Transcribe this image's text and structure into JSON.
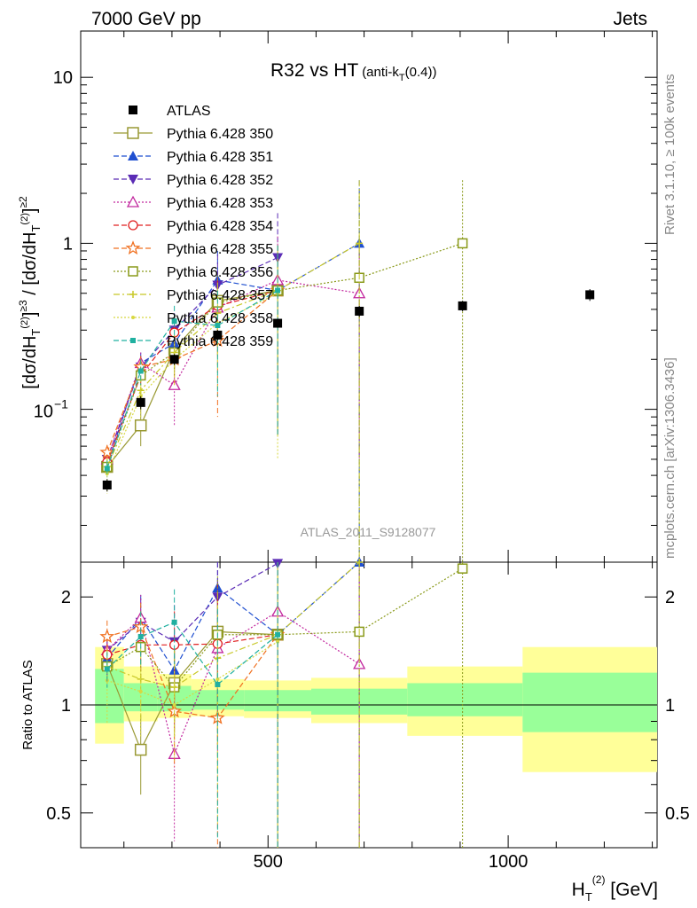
{
  "header": {
    "left": "7000 GeV pp",
    "right": "Jets"
  },
  "side_labels": {
    "rivet": "Rivet 3.1.10, ≥ 100k events",
    "mcplots": "mcplots.cern.ch [arXiv:1306.3436]"
  },
  "chart_data": [
    {
      "type": "scatter",
      "title": "R32 vs HT",
      "title_sub": "(anti-k",
      "title_sub_t": "T",
      "title_sub_end": "(0.4))",
      "analysis_label": "ATLAS_2011_S9128077",
      "ylabel": "[dσ/dH_T^(2)]^≥3 / [dσ/dH_T^(2)]^≥2",
      "yscale": "log",
      "ylim": [
        0.012,
        19
      ],
      "xlim": [
        110,
        1310
      ],
      "ytick_labels": [
        "10",
        "1",
        "10"
      ],
      "ytick_exp": "−1",
      "legend_position": "top-left",
      "x": [
        165,
        235,
        305,
        395,
        520,
        690,
        905,
        1170
      ],
      "data": {
        "name": "ATLAS",
        "values": [
          0.035,
          0.11,
          0.2,
          0.28,
          0.33,
          0.39,
          0.42,
          0.49
        ],
        "err_low": [
          0.003,
          0.01,
          0.015,
          0.02,
          0.02,
          0.03,
          0.03,
          0.04
        ],
        "err_high": [
          0.003,
          0.01,
          0.015,
          0.02,
          0.02,
          0.03,
          0.03,
          0.04
        ]
      },
      "series": [
        {
          "name": "Pythia 6.428 350",
          "color": "#999933",
          "line": "solid",
          "marker": "square-open",
          "values": [
            0.045,
            0.08,
            0.23,
            0.45,
            0.52
          ],
          "err": [
            0.004,
            0.02,
            0.06,
            0.15,
            0.45
          ]
        },
        {
          "name": "Pythia 6.428 351",
          "color": "#1f4fd0",
          "line": "dashed",
          "marker": "triangle-up",
          "values": [
            0.046,
            0.19,
            0.25,
            0.6,
            0.52,
            1.0
          ],
          "err": [
            0.006,
            0.03,
            0.07,
            0.3,
            0.45,
            1.4
          ]
        },
        {
          "name": "Pythia 6.428 352",
          "color": "#5a2bb5",
          "line": "dashed",
          "marker": "triangle-down",
          "values": [
            0.05,
            0.18,
            0.3,
            0.56,
            0.82
          ],
          "err": [
            0.006,
            0.03,
            0.08,
            0.3,
            0.7
          ]
        },
        {
          "name": "Pythia 6.428 353",
          "color": "#c2279e",
          "line": "dotted",
          "marker": "triangle-open",
          "values": [
            0.05,
            0.19,
            0.14,
            0.41,
            0.6,
            0.5
          ],
          "err": [
            0.005,
            0.03,
            0.06,
            0.2,
            0.5,
            0.45
          ]
        },
        {
          "name": "Pythia 6.428 354",
          "color": "#e02020",
          "line": "dashed",
          "marker": "circle-open",
          "values": [
            0.048,
            0.16,
            0.29,
            0.42,
            0.52
          ],
          "err": [
            0.006,
            0.03,
            0.07,
            0.2,
            0.45
          ]
        },
        {
          "name": "Pythia 6.428 355",
          "color": "#f07020",
          "line": "dashed",
          "marker": "star-open",
          "values": [
            0.055,
            0.18,
            0.2,
            0.26,
            0.52
          ],
          "err": [
            0.006,
            0.03,
            0.06,
            0.17,
            0.45
          ]
        },
        {
          "name": "Pythia 6.428 356",
          "color": "#8a9a1a",
          "line": "dotted",
          "marker": "square-open-small",
          "values": [
            0.045,
            0.16,
            0.22,
            0.44,
            0.52,
            0.62,
            1.0
          ],
          "err": [
            0.005,
            0.03,
            0.06,
            0.2,
            0.45,
            1.5,
            1.4
          ]
        },
        {
          "name": "Pythia 6.428 357",
          "color": "#c8c828",
          "line": "dashdot",
          "marker": "plus-small",
          "values": [
            0.045,
            0.13,
            0.22,
            0.38,
            0.52,
            1.0
          ],
          "err": [
            0.005,
            0.03,
            0.06,
            0.2,
            0.45,
            1.4
          ]
        },
        {
          "name": "Pythia 6.428 358",
          "color": "#d8d840",
          "line": "dotted",
          "marker": "dot-small",
          "values": [
            0.041,
            0.12,
            0.2,
            0.33,
            0.5
          ],
          "err": [
            0.01,
            0.03,
            0.06,
            0.2,
            0.45
          ]
        },
        {
          "name": "Pythia 6.428 359",
          "color": "#20b0a0",
          "line": "dashed",
          "marker": "square-filled-small",
          "values": [
            0.044,
            0.17,
            0.34,
            0.32,
            0.52
          ],
          "err": [
            0.005,
            0.03,
            0.08,
            0.2,
            0.45
          ]
        }
      ]
    },
    {
      "type": "scatter",
      "ylabel": "Ratio to ATLAS",
      "yscale": "log",
      "ylim": [
        0.4,
        2.5
      ],
      "xlim": [
        110,
        1310
      ],
      "ytick_labels": [
        "2",
        "1",
        "0.5"
      ],
      "xtick_labels": [
        "500",
        "1000"
      ],
      "xlabel": "H_T^(2) [GeV]",
      "band_edges": [
        140,
        200,
        270,
        340,
        450,
        590,
        790,
        1030,
        1310
      ],
      "band_yellow": [
        [
          0.78,
          1.45
        ],
        [
          0.9,
          1.28
        ],
        [
          0.92,
          1.22
        ],
        [
          0.93,
          1.18
        ],
        [
          0.92,
          1.17
        ],
        [
          0.89,
          1.19
        ],
        [
          0.82,
          1.28
        ],
        [
          0.65,
          1.45
        ]
      ],
      "band_green": [
        [
          0.89,
          1.26
        ],
        [
          0.96,
          1.15
        ],
        [
          0.96,
          1.13
        ],
        [
          0.97,
          1.1
        ],
        [
          0.96,
          1.1
        ],
        [
          0.94,
          1.11
        ],
        [
          0.93,
          1.15
        ],
        [
          0.84,
          1.23
        ]
      ],
      "series_ratios": [
        {
          "name": "Pythia 6.428 350",
          "values": [
            1.3,
            0.75,
            1.15,
            1.6,
            1.57
          ]
        },
        {
          "name": "Pythia 6.428 351",
          "values": [
            1.35,
            1.75,
            1.25,
            2.12,
            1.57,
            2.6
          ]
        },
        {
          "name": "Pythia 6.428 352",
          "values": [
            1.42,
            1.7,
            1.5,
            2.0,
            2.48
          ]
        },
        {
          "name": "Pythia 6.428 353",
          "values": [
            1.42,
            1.75,
            0.73,
            1.44,
            1.82,
            1.3
          ]
        },
        {
          "name": "Pythia 6.428 354",
          "values": [
            1.38,
            1.47,
            1.47,
            1.48,
            1.57
          ]
        },
        {
          "name": "Pythia 6.428 355",
          "values": [
            1.55,
            1.65,
            0.96,
            0.92,
            1.57
          ]
        },
        {
          "name": "Pythia 6.428 356",
          "values": [
            1.28,
            1.45,
            1.12,
            1.57,
            1.57,
            1.6,
            2.4
          ]
        },
        {
          "name": "Pythia 6.428 357",
          "values": [
            1.28,
            1.18,
            1.12,
            1.35,
            1.57,
            2.6
          ]
        },
        {
          "name": "Pythia 6.428 358",
          "values": [
            1.17,
            1.09,
            1.0,
            1.18,
            1.5
          ]
        },
        {
          "name": "Pythia 6.428 359",
          "values": [
            1.26,
            1.55,
            1.7,
            1.14,
            1.57
          ]
        }
      ]
    }
  ]
}
